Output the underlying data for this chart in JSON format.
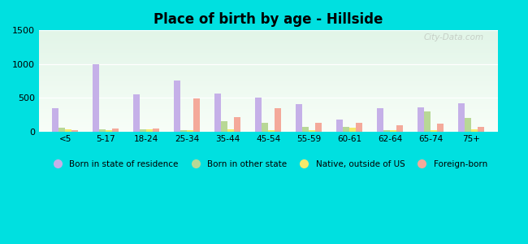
{
  "title": "Place of birth by age - Hillside",
  "background_color": "#00e0e0",
  "categories": [
    "<5",
    "5-17",
    "18-24",
    "25-34",
    "35-44",
    "45-54",
    "55-59",
    "60-61",
    "62-64",
    "65-74",
    "75+"
  ],
  "born_in_state": [
    350,
    1000,
    550,
    760,
    560,
    500,
    410,
    175,
    350,
    360,
    420
  ],
  "born_other_state": [
    55,
    25,
    25,
    20,
    150,
    130,
    65,
    65,
    15,
    295,
    195
  ],
  "native_outside_us": [
    25,
    20,
    30,
    15,
    25,
    15,
    15,
    60,
    15,
    20,
    25
  ],
  "foreign_born": [
    20,
    40,
    40,
    490,
    210,
    350,
    130,
    130,
    90,
    120,
    65
  ],
  "colors": {
    "born_in_state": "#c5b0e8",
    "born_other_state": "#b8d896",
    "native_outside_us": "#f5e96a",
    "foreign_born": "#f4a99a"
  },
  "ylim": [
    0,
    1500
  ],
  "yticks": [
    0,
    500,
    1000,
    1500
  ],
  "legend_labels": [
    "Born in state of residence",
    "Born in other state",
    "Native, outside of US",
    "Foreign-born"
  ],
  "watermark": "City-Data.com"
}
